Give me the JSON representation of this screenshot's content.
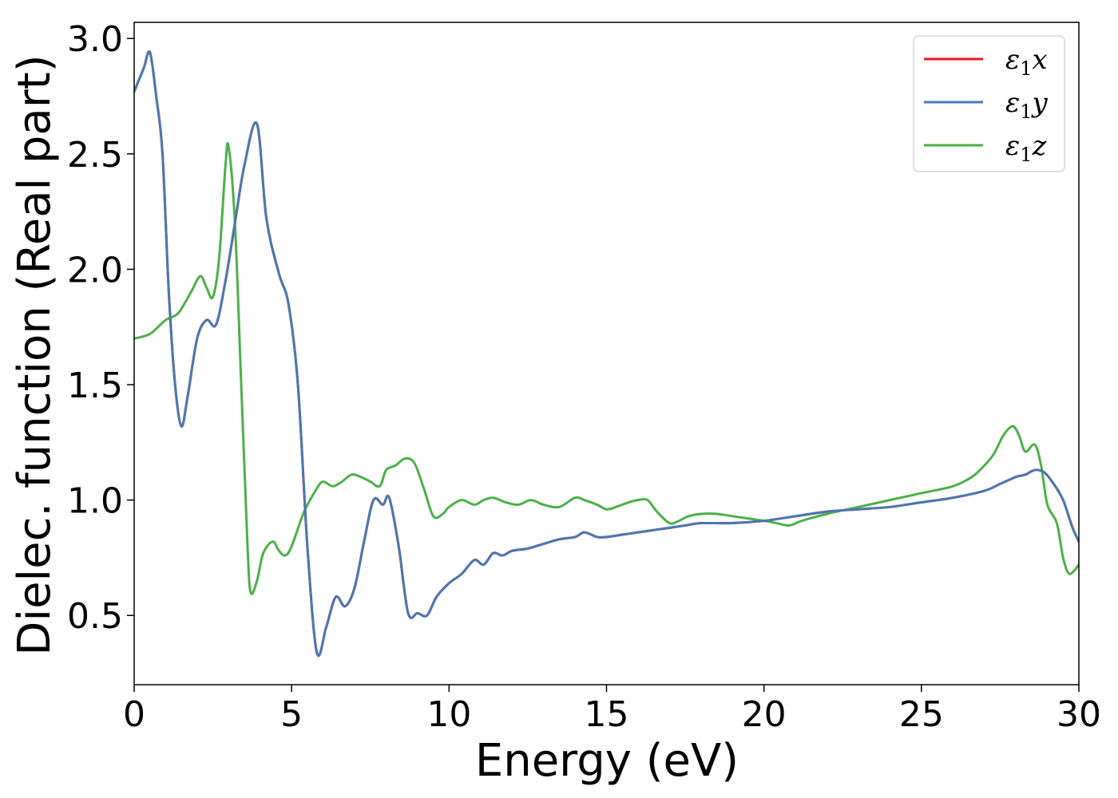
{
  "chart_data": {
    "type": "line",
    "title": "",
    "xlabel": "Energy (eV)",
    "ylabel": "Dielec. function (Real part)",
    "xlim": [
      0,
      30
    ],
    "ylim": [
      0.2,
      3.07
    ],
    "xticks": [
      0,
      5,
      10,
      15,
      20,
      25,
      30
    ],
    "xtick_labels": [
      "0",
      "5",
      "10",
      "15",
      "20",
      "25",
      "30"
    ],
    "yticks": [
      0.5,
      1.0,
      1.5,
      2.0,
      2.5,
      3.0
    ],
    "ytick_labels": [
      "0.5",
      "1.0",
      "1.5",
      "2.0",
      "2.5",
      "3.0"
    ],
    "grid": false,
    "legend_position": "top-right",
    "series": [
      {
        "name": "ε1x",
        "legend": {
          "symbol": "ε",
          "sub": "1",
          "var": "x"
        },
        "color": "#e41a1c",
        "x": [
          0,
          0.3,
          0.5,
          0.7,
          0.9,
          1.1,
          1.3,
          1.5,
          1.7,
          2.0,
          2.3,
          2.6,
          2.9,
          3.2,
          3.5,
          3.9,
          4.2,
          4.6,
          4.9,
          5.2,
          5.5,
          5.8,
          6.1,
          6.4,
          6.7,
          7.0,
          7.3,
          7.6,
          7.9,
          8.1,
          8.4,
          8.7,
          9.0,
          9.3,
          9.6,
          10.0,
          10.4,
          10.8,
          11.1,
          11.4,
          11.7,
          12.0,
          12.5,
          13.0,
          13.5,
          14.0,
          14.3,
          14.7,
          15.0,
          15.5,
          16.0,
          16.5,
          17.0,
          17.5,
          18.0,
          19.0,
          20.0,
          21.0,
          22.0,
          23.0,
          24.0,
          25.0,
          26.0,
          27.0,
          27.5,
          28.0,
          28.3,
          28.6,
          28.9,
          29.2,
          29.5,
          29.8,
          30.0
        ],
        "y": [
          2.77,
          2.87,
          2.94,
          2.75,
          2.5,
          1.9,
          1.5,
          1.32,
          1.45,
          1.7,
          1.78,
          1.76,
          1.95,
          2.2,
          2.45,
          2.63,
          2.22,
          1.98,
          1.85,
          1.5,
          0.8,
          0.34,
          0.45,
          0.58,
          0.54,
          0.62,
          0.82,
          1.0,
          0.98,
          1.01,
          0.8,
          0.51,
          0.51,
          0.5,
          0.58,
          0.64,
          0.68,
          0.74,
          0.72,
          0.77,
          0.76,
          0.78,
          0.79,
          0.81,
          0.83,
          0.84,
          0.86,
          0.84,
          0.84,
          0.85,
          0.86,
          0.87,
          0.88,
          0.89,
          0.9,
          0.9,
          0.91,
          0.93,
          0.95,
          0.96,
          0.97,
          0.99,
          1.01,
          1.04,
          1.07,
          1.1,
          1.11,
          1.13,
          1.12,
          1.07,
          1.0,
          0.88,
          0.82
        ]
      },
      {
        "name": "ε1y",
        "legend": {
          "symbol": "ε",
          "sub": "1",
          "var": "y"
        },
        "color": "#4a78b0",
        "x": [
          0,
          0.3,
          0.5,
          0.7,
          0.9,
          1.1,
          1.3,
          1.5,
          1.7,
          2.0,
          2.3,
          2.6,
          2.9,
          3.2,
          3.5,
          3.9,
          4.2,
          4.6,
          4.9,
          5.2,
          5.5,
          5.8,
          6.1,
          6.4,
          6.7,
          7.0,
          7.3,
          7.6,
          7.9,
          8.1,
          8.4,
          8.7,
          9.0,
          9.3,
          9.6,
          10.0,
          10.4,
          10.8,
          11.1,
          11.4,
          11.7,
          12.0,
          12.5,
          13.0,
          13.5,
          14.0,
          14.3,
          14.7,
          15.0,
          15.5,
          16.0,
          16.5,
          17.0,
          17.5,
          18.0,
          19.0,
          20.0,
          21.0,
          22.0,
          23.0,
          24.0,
          25.0,
          26.0,
          27.0,
          27.5,
          28.0,
          28.3,
          28.6,
          28.9,
          29.2,
          29.5,
          29.8,
          30.0
        ],
        "y": [
          2.77,
          2.87,
          2.94,
          2.75,
          2.5,
          1.9,
          1.5,
          1.32,
          1.45,
          1.7,
          1.78,
          1.76,
          1.95,
          2.2,
          2.45,
          2.63,
          2.22,
          1.98,
          1.85,
          1.5,
          0.8,
          0.34,
          0.45,
          0.58,
          0.54,
          0.62,
          0.82,
          1.0,
          0.98,
          1.01,
          0.8,
          0.51,
          0.51,
          0.5,
          0.58,
          0.64,
          0.68,
          0.74,
          0.72,
          0.77,
          0.76,
          0.78,
          0.79,
          0.81,
          0.83,
          0.84,
          0.86,
          0.84,
          0.84,
          0.85,
          0.86,
          0.87,
          0.88,
          0.89,
          0.9,
          0.9,
          0.91,
          0.93,
          0.95,
          0.96,
          0.97,
          0.99,
          1.01,
          1.04,
          1.07,
          1.1,
          1.11,
          1.13,
          1.12,
          1.07,
          1.0,
          0.88,
          0.82
        ]
      },
      {
        "name": "ε1z",
        "legend": {
          "symbol": "ε",
          "sub": "1",
          "var": "z"
        },
        "color": "#4daf4a",
        "x": [
          0,
          0.5,
          1.0,
          1.4,
          1.8,
          2.1,
          2.3,
          2.5,
          2.7,
          2.9,
          3.0,
          3.2,
          3.4,
          3.6,
          3.7,
          3.9,
          4.1,
          4.4,
          4.6,
          4.8,
          5.0,
          5.4,
          5.8,
          6.0,
          6.3,
          6.6,
          6.9,
          7.2,
          7.5,
          7.8,
          8.0,
          8.3,
          8.6,
          8.9,
          9.2,
          9.5,
          9.8,
          10.0,
          10.4,
          10.8,
          11.1,
          11.4,
          11.8,
          12.2,
          12.6,
          13.0,
          13.5,
          14.0,
          14.3,
          14.7,
          15.0,
          15.3,
          15.7,
          16.0,
          16.3,
          16.6,
          17.0,
          17.3,
          17.6,
          18.0,
          18.5,
          19.0,
          19.5,
          20.0,
          20.4,
          20.8,
          21.2,
          22.0,
          23.0,
          24.0,
          25.0,
          26.0,
          26.6,
          27.0,
          27.3,
          27.6,
          27.9,
          28.1,
          28.3,
          28.6,
          28.8,
          29.0,
          29.3,
          29.5,
          29.7,
          30.0
        ],
        "y": [
          1.7,
          1.72,
          1.78,
          1.81,
          1.9,
          1.97,
          1.92,
          1.88,
          2.05,
          2.45,
          2.53,
          2.2,
          1.5,
          0.8,
          0.6,
          0.65,
          0.77,
          0.82,
          0.78,
          0.76,
          0.8,
          0.95,
          1.05,
          1.08,
          1.06,
          1.08,
          1.11,
          1.1,
          1.08,
          1.06,
          1.13,
          1.15,
          1.18,
          1.16,
          1.05,
          0.93,
          0.94,
          0.97,
          1.0,
          0.98,
          1.0,
          1.01,
          0.99,
          0.98,
          1.0,
          0.98,
          0.97,
          1.01,
          1.0,
          0.98,
          0.96,
          0.97,
          0.99,
          1.0,
          1.0,
          0.95,
          0.9,
          0.91,
          0.93,
          0.94,
          0.94,
          0.93,
          0.92,
          0.91,
          0.9,
          0.89,
          0.91,
          0.94,
          0.97,
          1.0,
          1.03,
          1.06,
          1.1,
          1.15,
          1.2,
          1.28,
          1.32,
          1.28,
          1.21,
          1.24,
          1.15,
          0.98,
          0.9,
          0.75,
          0.68,
          0.72
        ]
      }
    ]
  }
}
